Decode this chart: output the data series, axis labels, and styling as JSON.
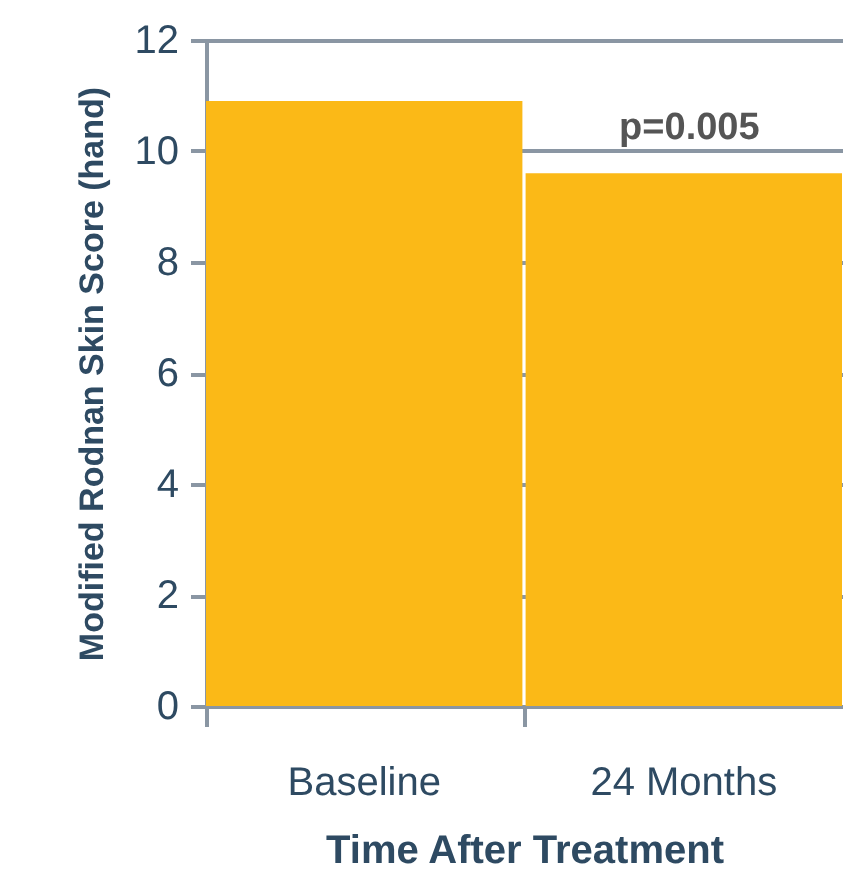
{
  "chart_data": {
    "type": "bar",
    "xlabel": "Time After Treatment",
    "ylabel": "Modified Rodnan Skin Score (hand)",
    "categories": [
      "Baseline",
      "24 Months"
    ],
    "values": [
      10.9,
      9.6
    ],
    "color": "#fbb917",
    "ylim": [
      0,
      12
    ],
    "yticks": [
      0,
      2,
      4,
      6,
      8,
      10,
      12
    ],
    "grid": "y",
    "annotations": [
      "p=0.005"
    ]
  }
}
